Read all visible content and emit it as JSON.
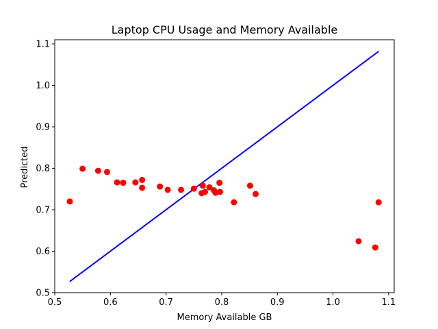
{
  "chart_data": {
    "type": "scatter",
    "title": "Laptop CPU Usage and Memory Available",
    "xlabel": "Memory Available GB",
    "ylabel": "Predicted",
    "xlim": [
      0.5,
      1.11
    ],
    "ylim": [
      0.5,
      1.11
    ],
    "xticks": [
      "0.5",
      "0.6",
      "0.7",
      "0.8",
      "0.9",
      "1.0",
      "1.1"
    ],
    "yticks": [
      "0.5",
      "0.6",
      "0.7",
      "0.8",
      "0.9",
      "1.0",
      "1.1"
    ],
    "grid": false,
    "points": {
      "color": "#ff0000",
      "x": [
        0.527,
        0.55,
        0.578,
        0.594,
        0.612,
        0.623,
        0.645,
        0.657,
        0.657,
        0.689,
        0.703,
        0.727,
        0.75,
        0.764,
        0.766,
        0.77,
        0.778,
        0.786,
        0.789,
        0.796,
        0.797,
        0.822,
        0.851,
        0.861,
        1.046,
        1.076,
        1.082
      ],
      "y": [
        0.72,
        0.799,
        0.794,
        0.791,
        0.766,
        0.765,
        0.766,
        0.772,
        0.753,
        0.756,
        0.748,
        0.748,
        0.751,
        0.74,
        0.758,
        0.743,
        0.754,
        0.747,
        0.741,
        0.765,
        0.743,
        0.718,
        0.758,
        0.738,
        0.624,
        0.609,
        0.718
      ]
    },
    "line": {
      "color": "#0000ff",
      "x": [
        0.527,
        1.082
      ],
      "y": [
        0.527,
        1.082
      ]
    }
  }
}
